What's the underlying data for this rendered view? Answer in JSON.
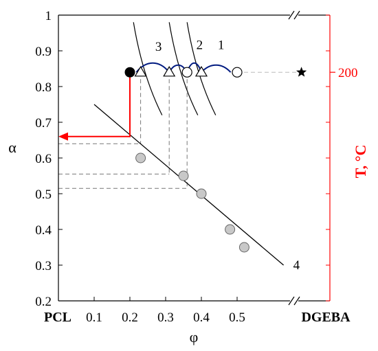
{
  "chart_data": {
    "type": "scatter",
    "xlabel": "φ",
    "ylabel": "α",
    "right_axis_label": "T, °C",
    "x_axis": {
      "range": [
        0,
        0.7
      ],
      "left_end_label": "PCL",
      "right_end_label": "DGEBA",
      "ticks": [
        {
          "value": 0.1,
          "label": "0.1"
        },
        {
          "value": 0.2,
          "label": "0.2"
        },
        {
          "value": 0.3,
          "label": "0.3"
        },
        {
          "value": 0.4,
          "label": "0.4"
        },
        {
          "value": 0.5,
          "label": "0.5"
        }
      ],
      "break_symbol": "//"
    },
    "y_axis": {
      "range": [
        0.2,
        1
      ],
      "ticks": [
        {
          "value": 0.2,
          "label": "0.2"
        },
        {
          "value": 0.3,
          "label": "0.3"
        },
        {
          "value": 0.4,
          "label": "0.4"
        },
        {
          "value": 0.5,
          "label": "0.5"
        },
        {
          "value": 0.6,
          "label": "0.6"
        },
        {
          "value": 0.7,
          "label": "0.7"
        },
        {
          "value": 0.8,
          "label": "0.8"
        },
        {
          "value": 0.9,
          "label": "0.9"
        },
        {
          "value": 1,
          "label": "1"
        }
      ]
    },
    "right_axis": {
      "color": "#ff0000",
      "tick": {
        "alpha_level": 0.84,
        "label": "200"
      }
    },
    "experimental_points": [
      {
        "phi": 0.23,
        "alpha": 0.6
      },
      {
        "phi": 0.35,
        "alpha": 0.55
      },
      {
        "phi": 0.4,
        "alpha": 0.5
      },
      {
        "phi": 0.48,
        "alpha": 0.4
      },
      {
        "phi": 0.52,
        "alpha": 0.35
      }
    ],
    "fit_line": {
      "label": "4",
      "from": {
        "phi": 0.1,
        "alpha": 0.75
      },
      "to": {
        "phi": 0.63,
        "alpha": 0.3
      }
    },
    "curves": [
      {
        "label": "1",
        "points": [
          [
            0.21,
            0.98
          ],
          [
            0.23,
            0.86
          ],
          [
            0.26,
            0.78
          ],
          [
            0.29,
            0.72
          ]
        ]
      },
      {
        "label": "2",
        "points": [
          [
            0.31,
            0.98
          ],
          [
            0.33,
            0.86
          ],
          [
            0.36,
            0.78
          ],
          [
            0.39,
            0.72
          ]
        ]
      },
      {
        "label": "3",
        "points": [
          [
            0.36,
            0.98
          ],
          [
            0.38,
            0.86
          ],
          [
            0.41,
            0.78
          ],
          [
            0.44,
            0.72
          ]
        ]
      }
    ],
    "isotherm": {
      "alpha": 0.84,
      "T_label": "200",
      "start": {
        "phi": 0.2,
        "marker": "filled-circle"
      },
      "end": {
        "phi": 0.5,
        "marker": "open-circle"
      },
      "open_circle_mid": 0.36,
      "triangles": [
        0.23,
        0.31,
        0.4
      ],
      "star_phi": 0.68,
      "arc_color": "#001a80"
    },
    "construction": {
      "red_arrow": {
        "phi_from": 0.2,
        "alpha_from": 0.84,
        "alpha_to": 0.66
      },
      "dashed_levels": [
        {
          "phi": 0.23,
          "alpha": 0.64
        },
        {
          "phi": 0.31,
          "alpha": 0.555
        },
        {
          "phi": 0.36,
          "alpha": 0.515
        }
      ]
    },
    "grid": false
  }
}
